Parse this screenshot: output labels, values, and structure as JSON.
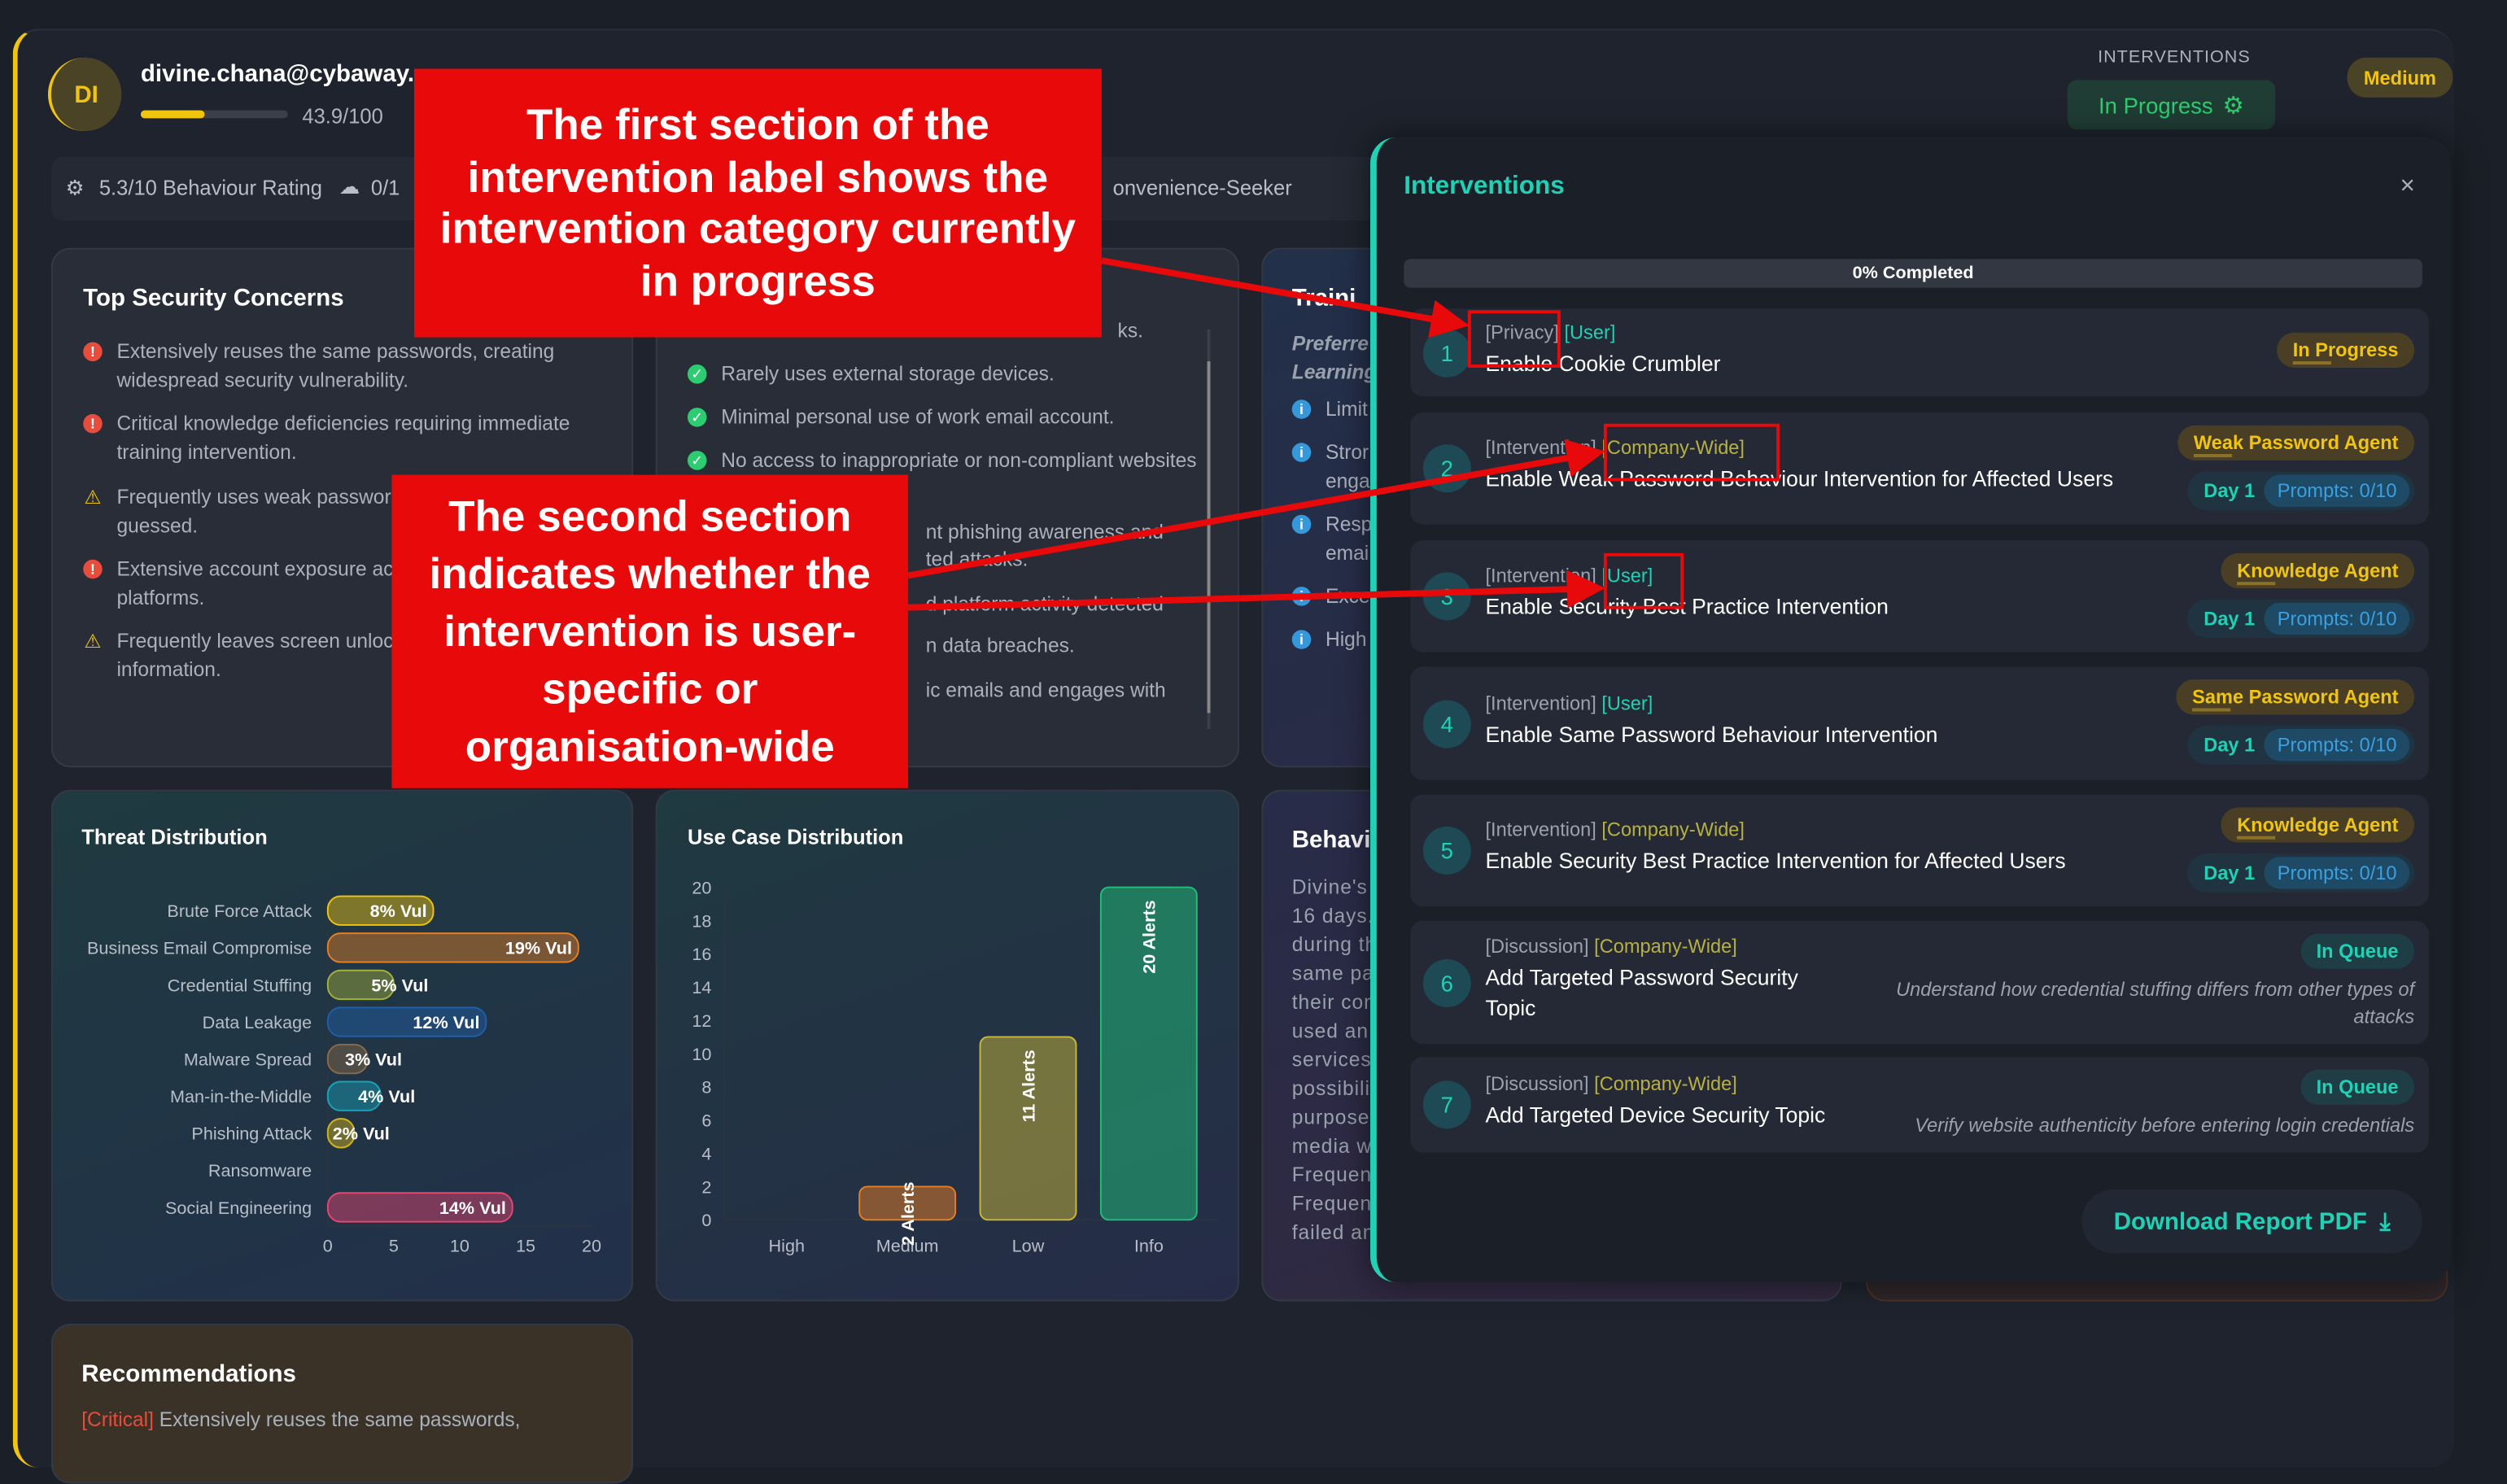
{
  "user": {
    "initials": "DI",
    "email": "divine.chana@cybaway.",
    "score_text": "43.9/100",
    "score_value": 43.9,
    "score_max": 100
  },
  "stats": {
    "behaviour_rating": "5.3/10 Behaviour Rating",
    "second": "0/1",
    "persona": "onvenience-Seeker"
  },
  "header": {
    "interventions_label": "INTERVENTIONS",
    "status_button": "In Progress",
    "risk_badge": "Medium"
  },
  "concerns": {
    "title": "Top Security Concerns",
    "items": [
      {
        "level": "critical",
        "lines": [
          "Extensively reuses the same passwords, creating",
          "widespread security vulnerability."
        ]
      },
      {
        "level": "critical",
        "lines": [
          "Critical knowledge deficiencies requiring immediate",
          "training intervention."
        ]
      },
      {
        "level": "warning",
        "lines": [
          "Frequently uses weak passwor",
          "guessed."
        ]
      },
      {
        "level": "critical",
        "lines": [
          "Extensive account exposure acr",
          "platforms."
        ]
      },
      {
        "level": "warning",
        "lines": [
          "Frequently leaves screen unloc",
          "information."
        ]
      }
    ]
  },
  "strengths": {
    "top_fragment": "ks.",
    "items": [
      "Rarely uses external storage devices.",
      "Minimal personal use of work email account.",
      "No access to inappropriate or non-compliant websites"
    ],
    "fragments": [
      "nt phishing awareness and",
      "ted attacks.",
      "d platform activity detected",
      "n data breaches.",
      "ic emails and engages with"
    ]
  },
  "training": {
    "title": "Traini",
    "preferred": [
      "Preferre",
      "Learning"
    ],
    "items": [
      [
        "Limit"
      ],
      [
        "Stror",
        "enga"
      ],
      [
        "Resp",
        "emai"
      ],
      [
        "Exce"
      ],
      [
        "High"
      ]
    ]
  },
  "behaviour": {
    "title": "Behavi",
    "lines": [
      "Divine's",
      "16 days.",
      "during th",
      "same pas",
      "their con",
      "used an",
      "services",
      "possibilit",
      "purposes",
      "media w",
      "Frequent",
      "Frequent",
      "failed an"
    ]
  },
  "recommendations": {
    "title": "Recommendations",
    "first_level": "[Critical]",
    "first_text": "Extensively reuses the same passwords,"
  },
  "chart_data": [
    {
      "type": "bar",
      "orientation": "horizontal",
      "title": "Threat Distribution",
      "categories": [
        "Brute Force Attack",
        "Business Email Compromise",
        "Credential Stuffing",
        "Data Leakage",
        "Malware Spread",
        "Man-in-the-Middle",
        "Phishing Attack",
        "Ransomware",
        "Social Engineering"
      ],
      "values": [
        8,
        19,
        5,
        12,
        3,
        4,
        2,
        0,
        14
      ],
      "labels": [
        "8% Vul",
        "19% Vul",
        "5% Vul",
        "12% Vul",
        "3% Vul",
        "4% Vul",
        "2% Vul",
        "",
        "14% Vul"
      ],
      "colors": [
        "#f1c40f",
        "#e67e22",
        "#a3b03a",
        "#1e5fa8",
        "#8a6a4a",
        "#18a2b8",
        "#d4b418",
        "#888888",
        "#e8456f"
      ],
      "xlim": [
        0,
        20
      ],
      "xticks": [
        0,
        5,
        10,
        15,
        20
      ]
    },
    {
      "type": "bar",
      "title": "Use Case Distribution",
      "categories": [
        "High",
        "Medium",
        "Low",
        "Info"
      ],
      "values": [
        0,
        2,
        11,
        20
      ],
      "labels": [
        "",
        "2 Alerts",
        "11 Alerts",
        "20 Alerts"
      ],
      "colors": [
        "#e74c3c",
        "#e67e22",
        "#c8b63a",
        "#1fbf7a"
      ],
      "ylim": [
        0,
        20
      ],
      "yticks": [
        0,
        2,
        4,
        6,
        8,
        10,
        12,
        14,
        16,
        18,
        20
      ]
    }
  ],
  "panel": {
    "title": "Interventions",
    "close": "×",
    "progress_text": "0% Completed",
    "progress": 0,
    "items": [
      {
        "n": "1",
        "category": "[Privacy]",
        "scope": "[User]",
        "title": [
          "Enable Cookie Crumbler"
        ],
        "status": "In Progress"
      },
      {
        "n": "2",
        "category": "[Intervention]",
        "scope": "[Company-Wide]",
        "title": [
          "Enable Weak Password Behaviour Intervention for Affected Users"
        ],
        "agent": "Weak Password Agent",
        "day": "Day 1",
        "prompts": "Prompts: 0/10"
      },
      {
        "n": "3",
        "category": "[Intervention]",
        "scope": "[User]",
        "title": [
          "Enable Security Best Practice Intervention"
        ],
        "agent": "Knowledge Agent",
        "day": "Day 1",
        "prompts": "Prompts: 0/10"
      },
      {
        "n": "4",
        "category": "[Intervention]",
        "scope": "[User]",
        "title": [
          "Enable Same Password Behaviour Intervention"
        ],
        "agent": "Same Password Agent",
        "day": "Day 1",
        "prompts": "Prompts: 0/10"
      },
      {
        "n": "5",
        "category": "[Intervention]",
        "scope": "[Company-Wide]",
        "title": [
          "Enable Security Best Practice Intervention for Affected Users"
        ],
        "agent": "Knowledge Agent",
        "day": "Day 1",
        "prompts": "Prompts: 0/10"
      },
      {
        "n": "6",
        "category": "[Discussion]",
        "scope": "[Company-Wide]",
        "title": [
          "Add Targeted Password Security",
          "Topic"
        ],
        "status": "In Queue",
        "note": [
          "Understand how credential stuffing differs from other types of",
          "attacks"
        ]
      },
      {
        "n": "7",
        "category": "[Discussion]",
        "scope": "[Company-Wide]",
        "title": [
          "Add Targeted Device Security Topic"
        ],
        "status": "In Queue",
        "note": [
          "Verify website authenticity before entering login credentials"
        ]
      }
    ],
    "download": "Download Report PDF"
  },
  "annotations": {
    "first": "The first section of the intervention label shows the intervention category currently in progress",
    "second": "The second section indicates whether the intervention is user-specific or organisation-wide"
  },
  "colors": {
    "accent": "#1fd1b5",
    "warning": "#f1c40f",
    "danger": "#e74c3c",
    "success": "#2ecc71",
    "annotation": "#e8090a"
  }
}
